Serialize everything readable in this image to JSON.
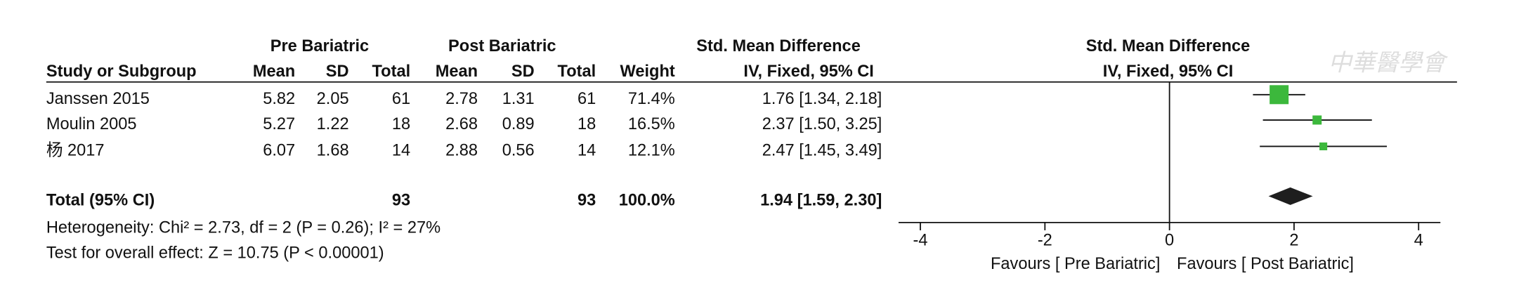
{
  "chart_data": {
    "type": "forest",
    "group_headers": [
      "Pre Bariatric",
      "Post Bariatric"
    ],
    "effect_header": "Std. Mean Difference",
    "method": "IV, Fixed, 95% CI",
    "columns": [
      "Study or Subgroup",
      "Mean",
      "SD",
      "Total",
      "Mean",
      "SD",
      "Total",
      "Weight"
    ],
    "studies": [
      {
        "name": "Janssen 2015",
        "pre": [
          5.82,
          2.05,
          61
        ],
        "post": [
          2.78,
          1.31,
          61
        ],
        "weight": 71.4,
        "weight_label": "71.4%",
        "smd": 1.76,
        "ci_low": 1.34,
        "ci_high": 2.18,
        "ci_label": "1.76 [1.34, 2.18]"
      },
      {
        "name": "Moulin 2005",
        "pre": [
          5.27,
          1.22,
          18
        ],
        "post": [
          2.68,
          0.89,
          18
        ],
        "weight": 16.5,
        "weight_label": "16.5%",
        "smd": 2.37,
        "ci_low": 1.5,
        "ci_high": 3.25,
        "ci_label": "2.37 [1.50, 3.25]"
      },
      {
        "name": "杨 2017",
        "pre": [
          6.07,
          1.68,
          14
        ],
        "post": [
          2.88,
          0.56,
          14
        ],
        "weight": 12.1,
        "weight_label": "12.1%",
        "smd": 2.47,
        "ci_low": 1.45,
        "ci_high": 3.49,
        "ci_label": "2.47 [1.45, 3.49]"
      }
    ],
    "total": {
      "name": "Total (95% CI)",
      "pre_total": 93,
      "post_total": 93,
      "weight": 100.0,
      "weight_label": "100.0%",
      "smd": 1.94,
      "ci_low": 1.59,
      "ci_high": 2.3,
      "ci_label": "1.94 [1.59, 2.30]"
    },
    "heterogeneity": "Heterogeneity: Chi² = 2.73, df = 2 (P = 0.26); I² = 27%",
    "overall_effect": "Test for overall effect: Z = 10.75 (P < 0.00001)",
    "xlim": [
      -4.35,
      4.35
    ],
    "xticks": [
      -4,
      -2,
      0,
      2,
      4
    ],
    "favours": [
      "Favours [ Pre Bariatric]",
      "Favours [ Post Bariatric]"
    ],
    "square_color": "#3cb83c",
    "diamond_color": "#1e1e1e",
    "watermark": "中華醫學會"
  }
}
